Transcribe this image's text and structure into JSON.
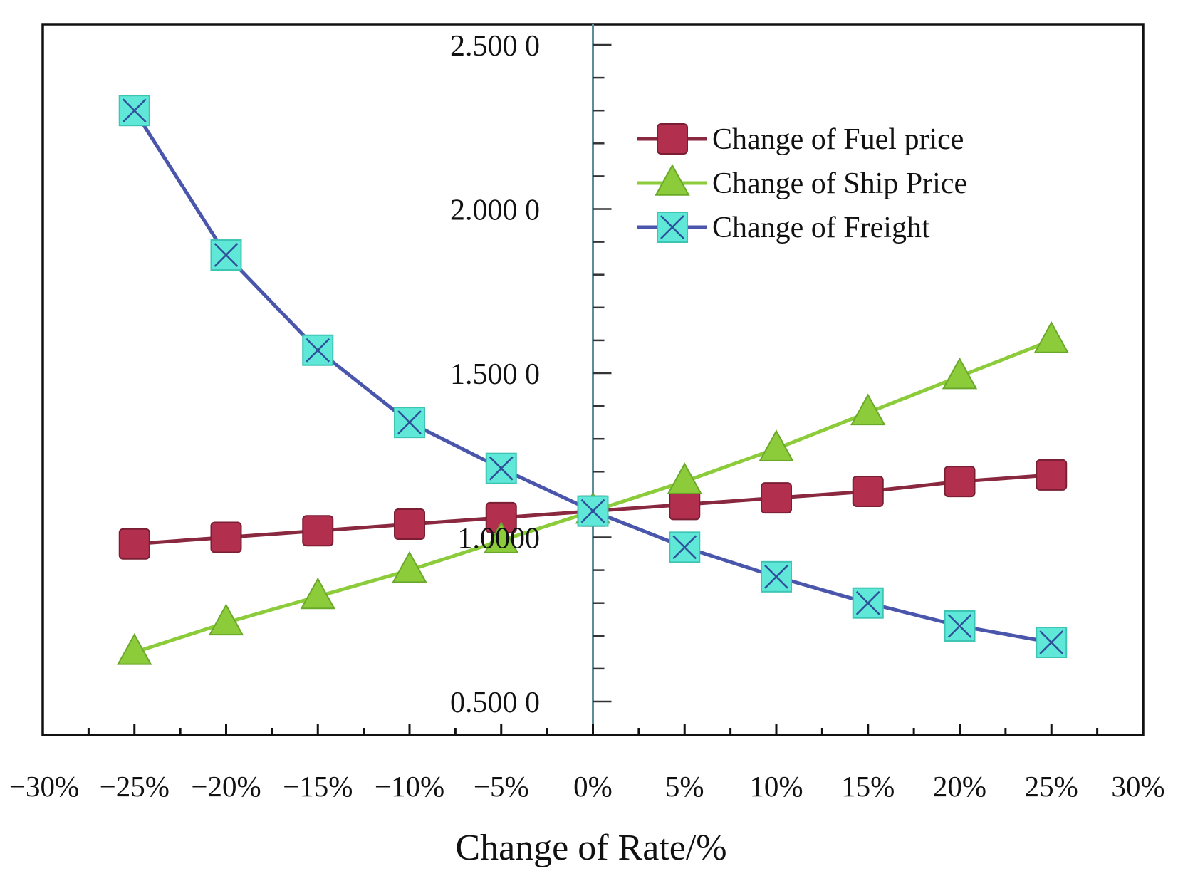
{
  "chart_data": {
    "type": "line",
    "title": "",
    "xlabel": "Change of Rate/%",
    "ylabel": "",
    "xlim": [
      -30,
      30
    ],
    "ylim": [
      0.4,
      2.6
    ],
    "x_ticks": [
      -30,
      -25,
      -20,
      -15,
      -10,
      -5,
      0,
      5,
      10,
      15,
      20,
      25,
      30
    ],
    "x_tick_labels": [
      "−30%",
      "−25%",
      "−20%",
      "−15%",
      "−10%",
      "−5%",
      "0%",
      "5%",
      "10%",
      "15%",
      "20%",
      "25%",
      "30%"
    ],
    "y_ticks": [
      0.5,
      1.0,
      1.5,
      2.0,
      2.5
    ],
    "y_tick_labels": [
      "0.500 0",
      "1.0000",
      "1.500 0",
      "2.000 0",
      "2.500 0"
    ],
    "legend_position": "top-right",
    "x": [
      -25,
      -20,
      -15,
      -10,
      -5,
      0,
      5,
      10,
      15,
      20,
      25
    ],
    "series": [
      {
        "name": "Change of Fuel price",
        "color": "#b2304e",
        "line_color": "#8a2840",
        "marker": "square",
        "values": [
          0.98,
          1.0,
          1.02,
          1.04,
          1.06,
          1.08,
          1.1,
          1.12,
          1.14,
          1.17,
          1.19
        ]
      },
      {
        "name": "Change of Ship Price",
        "color": "#8ccc3a",
        "line_color": "#8ccc3a",
        "marker": "triangle",
        "values": [
          0.65,
          0.74,
          0.82,
          0.9,
          0.99,
          1.08,
          1.17,
          1.27,
          1.38,
          1.49,
          1.6
        ]
      },
      {
        "name": "Change of Freight",
        "color": "#5fe8d8",
        "line_color": "#4a56ac",
        "marker": "square-x",
        "values": [
          2.3,
          1.86,
          1.57,
          1.35,
          1.21,
          1.08,
          0.97,
          0.88,
          0.8,
          0.73,
          0.68
        ]
      }
    ]
  }
}
